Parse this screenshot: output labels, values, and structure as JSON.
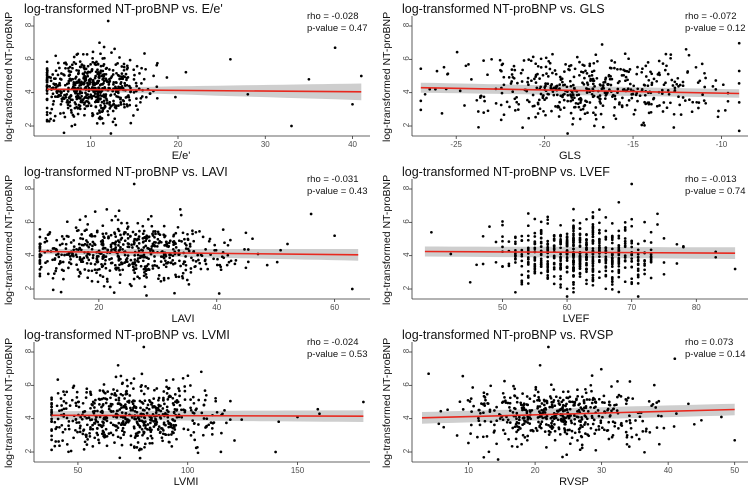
{
  "figure": {
    "background": "#ffffff"
  },
  "style": {
    "point_color": "#000000",
    "fit_color": "#e8281e",
    "band_color": "#bdbdbd",
    "axis_color": "#333333"
  },
  "chart_data": [
    {
      "type": "scatter",
      "title": "log-transformed NT-proBNP vs. E/e'",
      "xlabel": "E/e'",
      "ylabel": "log-transformed NT-proBNP",
      "rho": "rho = -0.028",
      "pvalue": "p-value = 0.47",
      "xlim": [
        3.5,
        42
      ],
      "ylim": [
        1.4,
        8.6
      ],
      "xticks": [
        10,
        20,
        30,
        40
      ],
      "yticks": [
        2,
        4,
        6,
        8
      ],
      "x_mean": 10,
      "x_sd": 2.7,
      "x_min": 5,
      "x_max": 42,
      "y_mean": 4.2,
      "y_sd": 0.95,
      "n": 600,
      "fit": {
        "x": [
          5,
          41
        ],
        "y": [
          4.2,
          4.05
        ]
      },
      "band_halfwidth": [
        0.06,
        0.5
      ],
      "notable_points": [
        [
          12,
          8.3
        ],
        [
          11,
          7.0
        ],
        [
          26,
          6.0
        ],
        [
          38,
          6.7
        ],
        [
          41,
          5.0
        ],
        [
          28,
          3.9
        ],
        [
          33,
          2.0
        ],
        [
          40,
          3.3
        ],
        [
          35,
          4.8
        ]
      ]
    },
    {
      "type": "scatter",
      "title": "log-transformed NT-proBNP vs. GLS",
      "xlabel": "GLS",
      "ylabel": "log-transformed NT-proBNP",
      "rho": "rho = -0.072",
      "pvalue": "p-value = 0.12",
      "xlim": [
        -27.5,
        -8.5
      ],
      "ylim": [
        1.4,
        8.6
      ],
      "xticks": [
        -25,
        -20,
        -15,
        -10
      ],
      "yticks": [
        2,
        4,
        6,
        8
      ],
      "x_mean": -17.5,
      "x_sd": 3.0,
      "x_min": -27,
      "x_max": -9,
      "y_mean": 4.2,
      "y_sd": 0.95,
      "n": 480,
      "fit": {
        "x": [
          -27,
          -9
        ],
        "y": [
          4.3,
          3.95
        ]
      },
      "band_halfwidth": [
        0.3,
        0.25
      ],
      "notable_points": [
        [
          -26.5,
          4.2
        ],
        [
          -25.5,
          5.1
        ],
        [
          -12,
          6.6
        ],
        [
          -9,
          5.3
        ],
        [
          -23,
          6.0
        ]
      ]
    },
    {
      "type": "scatter",
      "title": "log-transformed NT-proBNP vs. LAVI",
      "xlabel": "LAVI",
      "ylabel": "log-transformed NT-proBNP",
      "rho": "rho = -0.031",
      "pvalue": "p-value = 0.43",
      "xlim": [
        9,
        66
      ],
      "ylim": [
        1.4,
        8.6
      ],
      "xticks": [
        20,
        40,
        60
      ],
      "yticks": [
        2,
        4,
        6,
        8
      ],
      "x_mean": 25,
      "x_sd": 7.5,
      "x_min": 10,
      "x_max": 64,
      "y_mean": 4.2,
      "y_sd": 0.95,
      "n": 600,
      "fit": {
        "x": [
          10,
          64
        ],
        "y": [
          4.25,
          4.05
        ]
      },
      "band_halfwidth": [
        0.15,
        0.35
      ],
      "notable_points": [
        [
          26,
          8.3
        ],
        [
          56,
          6.5
        ],
        [
          63,
          2.0
        ],
        [
          60,
          5.2
        ],
        [
          52,
          4.7
        ],
        [
          47,
          4.1
        ]
      ]
    },
    {
      "type": "scatter",
      "title": "log-transformed NT-proBNP vs. LVEF",
      "xlabel": "LVEF",
      "ylabel": "log-transformed NT-proBNP",
      "rho": "rho = -0.013",
      "pvalue": "p-value = 0.74",
      "xlim": [
        36,
        88
      ],
      "ylim": [
        1.4,
        8.6
      ],
      "xticks": [
        50,
        60,
        70,
        80
      ],
      "yticks": [
        2,
        4,
        6,
        8
      ],
      "x_mean": 62,
      "x_sd": 5.2,
      "x_min": 38,
      "x_max": 86,
      "y_mean": 4.2,
      "y_sd": 0.95,
      "n": 600,
      "x_step": 1,
      "fit": {
        "x": [
          38,
          86
        ],
        "y": [
          4.25,
          4.15
        ]
      },
      "band_halfwidth": [
        0.3,
        0.35
      ],
      "notable_points": [
        [
          39,
          5.4
        ],
        [
          55,
          6.2
        ],
        [
          70,
          8.3
        ],
        [
          86,
          3.2
        ],
        [
          45,
          2.4
        ],
        [
          42,
          4.1
        ]
      ]
    },
    {
      "type": "scatter",
      "title": "log-transformed NT-proBNP vs. LVMI",
      "xlabel": "LVMI",
      "ylabel": "log-transformed NT-proBNP",
      "rho": "rho = -0.024",
      "pvalue": "p-value = 0.53",
      "xlim": [
        30,
        183
      ],
      "ylim": [
        1.4,
        8.6
      ],
      "xticks": [
        50,
        100,
        150
      ],
      "yticks": [
        2,
        4,
        6,
        8
      ],
      "x_mean": 75,
      "x_sd": 17,
      "x_min": 38,
      "x_max": 180,
      "y_mean": 4.2,
      "y_sd": 0.95,
      "n": 600,
      "fit": {
        "x": [
          38,
          180
        ],
        "y": [
          4.2,
          4.15
        ]
      },
      "band_halfwidth": [
        0.25,
        0.35
      ],
      "notable_points": [
        [
          80,
          8.3
        ],
        [
          180,
          5.0
        ],
        [
          160,
          4.3
        ],
        [
          150,
          4.1
        ],
        [
          140,
          2.0
        ]
      ]
    },
    {
      "type": "scatter",
      "title": "log-transformed NT-proBNP vs. RVSP",
      "xlabel": "RVSP",
      "ylabel": "log-transformed NT-proBNP",
      "rho": "rho = 0.073",
      "pvalue": "p-value = 0.14",
      "xlim": [
        1.5,
        52
      ],
      "ylim": [
        1.4,
        8.6
      ],
      "xticks": [
        10,
        20,
        30,
        40,
        50
      ],
      "yticks": [
        2,
        4,
        6,
        8
      ],
      "x_mean": 23,
      "x_sd": 6.5,
      "x_min": 3,
      "x_max": 50,
      "y_mean": 4.2,
      "y_sd": 0.95,
      "n": 480,
      "fit": {
        "x": [
          3,
          50
        ],
        "y": [
          4.05,
          4.55
        ]
      },
      "band_halfwidth": [
        0.35,
        0.35
      ],
      "notable_points": [
        [
          22,
          8.3
        ],
        [
          4,
          6.7
        ],
        [
          41,
          7.6
        ],
        [
          50,
          2.7
        ],
        [
          48,
          4.1
        ],
        [
          45,
          3.9
        ]
      ]
    }
  ]
}
